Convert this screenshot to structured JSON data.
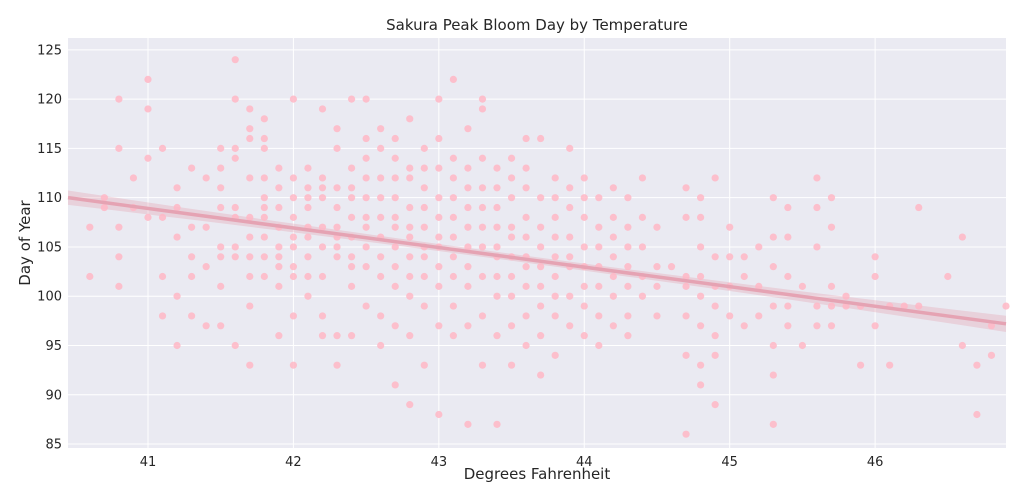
{
  "chart_data": {
    "type": "scatter",
    "title": "Sakura Peak Bloom Day by Temperature",
    "xlabel": "Degrees Fahrenheit",
    "ylabel": "Day of Year",
    "xlim": [
      40.45,
      46.9
    ],
    "ylim": [
      84.6,
      126.2
    ],
    "x_ticks": [
      41,
      42,
      43,
      44,
      45,
      46
    ],
    "y_ticks": [
      85,
      90,
      95,
      100,
      105,
      110,
      115,
      120,
      125
    ],
    "grid": true,
    "background": "#eaeaf2",
    "point_color": "#ffb7c5",
    "trend_color": "#e5a3b3",
    "trend_line": {
      "x": [
        40.45,
        46.9
      ],
      "y": [
        110.0,
        97.2
      ]
    },
    "points": [
      [
        40.6,
        107
      ],
      [
        40.6,
        102
      ],
      [
        40.7,
        109
      ],
      [
        40.7,
        110
      ],
      [
        40.8,
        107
      ],
      [
        40.8,
        104
      ],
      [
        40.8,
        101
      ],
      [
        40.8,
        120
      ],
      [
        40.8,
        115
      ],
      [
        40.9,
        109
      ],
      [
        40.9,
        112
      ],
      [
        41.0,
        119
      ],
      [
        41.0,
        122
      ],
      [
        41.0,
        114
      ],
      [
        41.0,
        108
      ],
      [
        41.1,
        108
      ],
      [
        41.1,
        102
      ],
      [
        41.1,
        98
      ],
      [
        41.1,
        115
      ],
      [
        41.2,
        109
      ],
      [
        41.2,
        111
      ],
      [
        41.2,
        106
      ],
      [
        41.2,
        100
      ],
      [
        41.2,
        95
      ],
      [
        41.3,
        113
      ],
      [
        41.3,
        107
      ],
      [
        41.3,
        104
      ],
      [
        41.3,
        102
      ],
      [
        41.3,
        98
      ],
      [
        41.4,
        112
      ],
      [
        41.4,
        107
      ],
      [
        41.4,
        103
      ],
      [
        41.4,
        97
      ],
      [
        41.5,
        115
      ],
      [
        41.5,
        109
      ],
      [
        41.5,
        111
      ],
      [
        41.5,
        113
      ],
      [
        41.5,
        105
      ],
      [
        41.5,
        104
      ],
      [
        41.5,
        101
      ],
      [
        41.5,
        97
      ],
      [
        41.6,
        120
      ],
      [
        41.6,
        114
      ],
      [
        41.6,
        115
      ],
      [
        41.6,
        109
      ],
      [
        41.6,
        108
      ],
      [
        41.6,
        105
      ],
      [
        41.6,
        104
      ],
      [
        41.6,
        95
      ],
      [
        41.6,
        124
      ],
      [
        41.7,
        119
      ],
      [
        41.7,
        117
      ],
      [
        41.7,
        116
      ],
      [
        41.7,
        112
      ],
      [
        41.7,
        108
      ],
      [
        41.7,
        106
      ],
      [
        41.7,
        104
      ],
      [
        41.7,
        102
      ],
      [
        41.7,
        99
      ],
      [
        41.7,
        93
      ],
      [
        41.8,
        118
      ],
      [
        41.8,
        116
      ],
      [
        41.8,
        115
      ],
      [
        41.8,
        112
      ],
      [
        41.8,
        110
      ],
      [
        41.8,
        108
      ],
      [
        41.8,
        106
      ],
      [
        41.8,
        104
      ],
      [
        41.8,
        102
      ],
      [
        41.8,
        109
      ],
      [
        41.9,
        111
      ],
      [
        41.9,
        113
      ],
      [
        41.9,
        109
      ],
      [
        41.9,
        107
      ],
      [
        41.9,
        105
      ],
      [
        41.9,
        104
      ],
      [
        41.9,
        103
      ],
      [
        41.9,
        101
      ],
      [
        41.9,
        96
      ],
      [
        42.0,
        120
      ],
      [
        42.0,
        112
      ],
      [
        42.0,
        110
      ],
      [
        42.0,
        108
      ],
      [
        42.0,
        106
      ],
      [
        42.0,
        105
      ],
      [
        42.0,
        103
      ],
      [
        42.0,
        102
      ],
      [
        42.0,
        98
      ],
      [
        42.0,
        93
      ],
      [
        42.1,
        113
      ],
      [
        42.1,
        111
      ],
      [
        42.1,
        110
      ],
      [
        42.1,
        109
      ],
      [
        42.1,
        107
      ],
      [
        42.1,
        106
      ],
      [
        42.1,
        104
      ],
      [
        42.1,
        102
      ],
      [
        42.1,
        100
      ],
      [
        42.2,
        119
      ],
      [
        42.2,
        112
      ],
      [
        42.2,
        111
      ],
      [
        42.2,
        110
      ],
      [
        42.2,
        107
      ],
      [
        42.2,
        105
      ],
      [
        42.2,
        102
      ],
      [
        42.2,
        98
      ],
      [
        42.2,
        96
      ],
      [
        42.3,
        117
      ],
      [
        42.3,
        115
      ],
      [
        42.3,
        111
      ],
      [
        42.3,
        109
      ],
      [
        42.3,
        107
      ],
      [
        42.3,
        106
      ],
      [
        42.3,
        105
      ],
      [
        42.3,
        104
      ],
      [
        42.3,
        96
      ],
      [
        42.3,
        93
      ],
      [
        42.4,
        120
      ],
      [
        42.4,
        113
      ],
      [
        42.4,
        111
      ],
      [
        42.4,
        110
      ],
      [
        42.4,
        108
      ],
      [
        42.4,
        106
      ],
      [
        42.4,
        104
      ],
      [
        42.4,
        103
      ],
      [
        42.4,
        101
      ],
      [
        42.4,
        96
      ],
      [
        42.5,
        120
      ],
      [
        42.5,
        116
      ],
      [
        42.5,
        114
      ],
      [
        42.5,
        112
      ],
      [
        42.5,
        110
      ],
      [
        42.5,
        108
      ],
      [
        42.5,
        107
      ],
      [
        42.5,
        105
      ],
      [
        42.5,
        103
      ],
      [
        42.5,
        99
      ],
      [
        42.6,
        117
      ],
      [
        42.6,
        115
      ],
      [
        42.6,
        112
      ],
      [
        42.6,
        110
      ],
      [
        42.6,
        108
      ],
      [
        42.6,
        106
      ],
      [
        42.6,
        104
      ],
      [
        42.6,
        102
      ],
      [
        42.6,
        98
      ],
      [
        42.6,
        95
      ],
      [
        42.7,
        116
      ],
      [
        42.7,
        114
      ],
      [
        42.7,
        112
      ],
      [
        42.7,
        110
      ],
      [
        42.7,
        108
      ],
      [
        42.7,
        107
      ],
      [
        42.7,
        105
      ],
      [
        42.7,
        103
      ],
      [
        42.7,
        101
      ],
      [
        42.7,
        97
      ],
      [
        42.7,
        91
      ],
      [
        42.8,
        118
      ],
      [
        42.8,
        113
      ],
      [
        42.8,
        112
      ],
      [
        42.8,
        109
      ],
      [
        42.8,
        107
      ],
      [
        42.8,
        106
      ],
      [
        42.8,
        104
      ],
      [
        42.8,
        102
      ],
      [
        42.8,
        100
      ],
      [
        42.8,
        96
      ],
      [
        42.8,
        89
      ],
      [
        42.9,
        115
      ],
      [
        42.9,
        113
      ],
      [
        42.9,
        111
      ],
      [
        42.9,
        109
      ],
      [
        42.9,
        107
      ],
      [
        42.9,
        105
      ],
      [
        42.9,
        104
      ],
      [
        42.9,
        102
      ],
      [
        42.9,
        99
      ],
      [
        42.9,
        93
      ],
      [
        43.0,
        120
      ],
      [
        43.0,
        116
      ],
      [
        43.0,
        113
      ],
      [
        43.0,
        110
      ],
      [
        43.0,
        108
      ],
      [
        43.0,
        106
      ],
      [
        43.0,
        105
      ],
      [
        43.0,
        103
      ],
      [
        43.0,
        101
      ],
      [
        43.0,
        97
      ],
      [
        43.0,
        88
      ],
      [
        43.1,
        122
      ],
      [
        43.1,
        114
      ],
      [
        43.1,
        112
      ],
      [
        43.1,
        110
      ],
      [
        43.1,
        108
      ],
      [
        43.1,
        106
      ],
      [
        43.1,
        104
      ],
      [
        43.1,
        102
      ],
      [
        43.1,
        99
      ],
      [
        43.1,
        96
      ],
      [
        43.2,
        117
      ],
      [
        43.2,
        113
      ],
      [
        43.2,
        111
      ],
      [
        43.2,
        109
      ],
      [
        43.2,
        107
      ],
      [
        43.2,
        105
      ],
      [
        43.2,
        103
      ],
      [
        43.2,
        101
      ],
      [
        43.2,
        97
      ],
      [
        43.2,
        87
      ],
      [
        43.3,
        120
      ],
      [
        43.3,
        119
      ],
      [
        43.3,
        114
      ],
      [
        43.3,
        111
      ],
      [
        43.3,
        109
      ],
      [
        43.3,
        107
      ],
      [
        43.3,
        105
      ],
      [
        43.3,
        102
      ],
      [
        43.3,
        98
      ],
      [
        43.3,
        93
      ],
      [
        43.4,
        113
      ],
      [
        43.4,
        111
      ],
      [
        43.4,
        109
      ],
      [
        43.4,
        107
      ],
      [
        43.4,
        105
      ],
      [
        43.4,
        104
      ],
      [
        43.4,
        102
      ],
      [
        43.4,
        100
      ],
      [
        43.4,
        96
      ],
      [
        43.4,
        87
      ],
      [
        43.5,
        114
      ],
      [
        43.5,
        112
      ],
      [
        43.5,
        110
      ],
      [
        43.5,
        107
      ],
      [
        43.5,
        106
      ],
      [
        43.5,
        104
      ],
      [
        43.5,
        102
      ],
      [
        43.5,
        100
      ],
      [
        43.5,
        97
      ],
      [
        43.5,
        93
      ],
      [
        43.6,
        116
      ],
      [
        43.6,
        113
      ],
      [
        43.6,
        111
      ],
      [
        43.6,
        108
      ],
      [
        43.6,
        106
      ],
      [
        43.6,
        104
      ],
      [
        43.6,
        103
      ],
      [
        43.6,
        101
      ],
      [
        43.6,
        98
      ],
      [
        43.6,
        95
      ],
      [
        43.7,
        116
      ],
      [
        43.7,
        110
      ],
      [
        43.7,
        107
      ],
      [
        43.7,
        105
      ],
      [
        43.7,
        103
      ],
      [
        43.7,
        101
      ],
      [
        43.7,
        99
      ],
      [
        43.7,
        96
      ],
      [
        43.7,
        92
      ],
      [
        43.8,
        112
      ],
      [
        43.8,
        110
      ],
      [
        43.8,
        108
      ],
      [
        43.8,
        106
      ],
      [
        43.8,
        104
      ],
      [
        43.8,
        102
      ],
      [
        43.8,
        100
      ],
      [
        43.8,
        98
      ],
      [
        43.8,
        94
      ],
      [
        43.9,
        115
      ],
      [
        43.9,
        111
      ],
      [
        43.9,
        109
      ],
      [
        43.9,
        106
      ],
      [
        43.9,
        104
      ],
      [
        43.9,
        103
      ],
      [
        43.9,
        100
      ],
      [
        43.9,
        97
      ],
      [
        44.0,
        112
      ],
      [
        44.0,
        110
      ],
      [
        44.0,
        108
      ],
      [
        44.0,
        105
      ],
      [
        44.0,
        103
      ],
      [
        44.0,
        101
      ],
      [
        44.0,
        99
      ],
      [
        44.0,
        96
      ],
      [
        44.1,
        110
      ],
      [
        44.1,
        107
      ],
      [
        44.1,
        105
      ],
      [
        44.1,
        103
      ],
      [
        44.1,
        101
      ],
      [
        44.1,
        98
      ],
      [
        44.1,
        95
      ],
      [
        44.2,
        111
      ],
      [
        44.2,
        108
      ],
      [
        44.2,
        106
      ],
      [
        44.2,
        104
      ],
      [
        44.2,
        102
      ],
      [
        44.2,
        100
      ],
      [
        44.2,
        97
      ],
      [
        44.3,
        110
      ],
      [
        44.3,
        107
      ],
      [
        44.3,
        105
      ],
      [
        44.3,
        103
      ],
      [
        44.3,
        101
      ],
      [
        44.3,
        98
      ],
      [
        44.3,
        96
      ],
      [
        44.4,
        112
      ],
      [
        44.4,
        108
      ],
      [
        44.4,
        105
      ],
      [
        44.4,
        102
      ],
      [
        44.4,
        100
      ],
      [
        44.5,
        107
      ],
      [
        44.5,
        103
      ],
      [
        44.5,
        101
      ],
      [
        44.5,
        98
      ],
      [
        44.6,
        103
      ],
      [
        44.7,
        111
      ],
      [
        44.7,
        108
      ],
      [
        44.7,
        102
      ],
      [
        44.7,
        101
      ],
      [
        44.7,
        98
      ],
      [
        44.7,
        94
      ],
      [
        44.7,
        86
      ],
      [
        44.8,
        110
      ],
      [
        44.8,
        108
      ],
      [
        44.8,
        105
      ],
      [
        44.8,
        102
      ],
      [
        44.8,
        100
      ],
      [
        44.8,
        97
      ],
      [
        44.8,
        93
      ],
      [
        44.8,
        91
      ],
      [
        44.9,
        112
      ],
      [
        44.9,
        104
      ],
      [
        44.9,
        101
      ],
      [
        44.9,
        99
      ],
      [
        44.9,
        96
      ],
      [
        44.9,
        94
      ],
      [
        44.9,
        89
      ],
      [
        45.0,
        107
      ],
      [
        45.0,
        104
      ],
      [
        45.0,
        101
      ],
      [
        45.0,
        98
      ],
      [
        45.1,
        104
      ],
      [
        45.1,
        102
      ],
      [
        45.1,
        97
      ],
      [
        45.2,
        105
      ],
      [
        45.2,
        101
      ],
      [
        45.2,
        98
      ],
      [
        45.3,
        110
      ],
      [
        45.3,
        106
      ],
      [
        45.3,
        103
      ],
      [
        45.3,
        99
      ],
      [
        45.3,
        95
      ],
      [
        45.3,
        92
      ],
      [
        45.3,
        87
      ],
      [
        45.4,
        109
      ],
      [
        45.4,
        106
      ],
      [
        45.4,
        102
      ],
      [
        45.4,
        99
      ],
      [
        45.4,
        97
      ],
      [
        45.5,
        101
      ],
      [
        45.5,
        95
      ],
      [
        45.6,
        112
      ],
      [
        45.6,
        109
      ],
      [
        45.6,
        105
      ],
      [
        45.6,
        99
      ],
      [
        45.6,
        97
      ],
      [
        45.7,
        110
      ],
      [
        45.7,
        107
      ],
      [
        45.7,
        101
      ],
      [
        45.7,
        99
      ],
      [
        45.7,
        97
      ],
      [
        45.8,
        100
      ],
      [
        45.8,
        99
      ],
      [
        45.9,
        93
      ],
      [
        45.9,
        99
      ],
      [
        46.0,
        104
      ],
      [
        46.0,
        102
      ],
      [
        46.0,
        97
      ],
      [
        46.1,
        99
      ],
      [
        46.1,
        93
      ],
      [
        46.2,
        99
      ],
      [
        46.3,
        109
      ],
      [
        46.3,
        99
      ],
      [
        46.5,
        102
      ],
      [
        46.6,
        106
      ],
      [
        46.6,
        95
      ],
      [
        46.7,
        93
      ],
      [
        46.7,
        88
      ],
      [
        46.8,
        97
      ],
      [
        46.8,
        94
      ],
      [
        46.9,
        99
      ]
    ]
  }
}
